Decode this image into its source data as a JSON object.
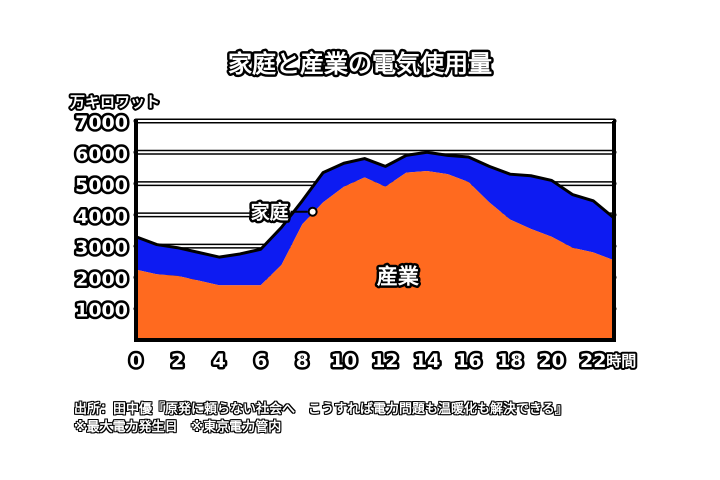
{
  "chart_data": {
    "type": "area",
    "title": "家庭と産業の電気使用量",
    "ylabel": "万キロワット",
    "xunit": "時間",
    "x": [
      0,
      1,
      2,
      3,
      4,
      5,
      6,
      7,
      8,
      9,
      10,
      11,
      12,
      13,
      14,
      15,
      16,
      17,
      18,
      19,
      20,
      21,
      22,
      23
    ],
    "xticks": [
      0,
      2,
      4,
      6,
      8,
      10,
      12,
      14,
      16,
      18,
      20,
      22
    ],
    "yticks": [
      1000,
      2000,
      3000,
      4000,
      5000,
      6000,
      7000
    ],
    "ylim": [
      0,
      7000
    ],
    "xlim": [
      0,
      23
    ],
    "stacked": true,
    "grid": true,
    "series": [
      {
        "name": "産業",
        "values": [
          2250,
          2100,
          2050,
          1900,
          1750,
          1750,
          1750,
          2400,
          3700,
          4400,
          4900,
          5200,
          4900,
          5350,
          5400,
          5300,
          5050,
          4400,
          3850,
          3550,
          3300,
          2950,
          2800,
          2550
        ]
      },
      {
        "name": "家庭",
        "values": [
          1050,
          950,
          900,
          900,
          900,
          1000,
          1150,
          1200,
          750,
          950,
          750,
          600,
          650,
          550,
          600,
          600,
          800,
          1150,
          1450,
          1700,
          1800,
          1700,
          1650,
          1350
        ]
      }
    ],
    "colors": {
      "産業": "#ff6a1f",
      "家庭": "#0d1bf2"
    }
  },
  "source": {
    "line1": "出所：田中優『原発に頼らない社会へ　こうすれば電力問題も温暖化も解決できる』",
    "line2": "※最大電力発生日　※東京電力管内"
  }
}
